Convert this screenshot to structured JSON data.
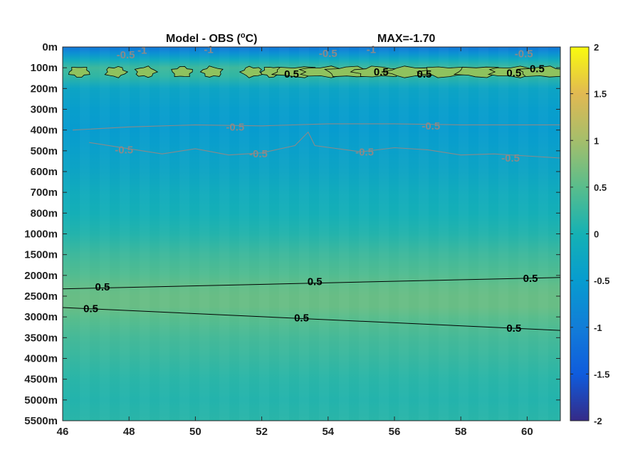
{
  "chart_data": {
    "type": "heatmap",
    "title": "Model - OBS (",
    "title_unit_sup": "o",
    "title_unit_rest": "C)",
    "max_label": "MAX=-1.70",
    "x_ticks": [
      "46",
      "48",
      "50",
      "52",
      "54",
      "56",
      "58",
      "60"
    ],
    "x_range": [
      46,
      61
    ],
    "y_ticks": [
      "0m",
      "100m",
      "200m",
      "300m",
      "400m",
      "500m",
      "600m",
      "700m",
      "800m",
      "1000m",
      "1500m",
      "2000m",
      "2500m",
      "3000m",
      "3500m",
      "4000m",
      "4500m",
      "5000m",
      "5500m"
    ],
    "colorbar": {
      "range": [
        -2,
        2
      ],
      "ticks": [
        "2",
        "1.5",
        "1",
        "0.5",
        "0",
        "-0.5",
        "-1",
        "-1.5",
        "-2"
      ],
      "colormap": "parula"
    },
    "depth_profile": [
      {
        "level": 0.0,
        "value": -1.1
      },
      {
        "level": 0.3,
        "value": -0.7
      },
      {
        "level": 0.6,
        "value": -0.2
      },
      {
        "level": 1.0,
        "value": 0.3
      },
      {
        "level": 1.4,
        "value": 0.2
      },
      {
        "level": 2.0,
        "value": -0.3
      },
      {
        "level": 3.0,
        "value": -0.45
      },
      {
        "level": 4.0,
        "value": -0.5
      },
      {
        "level": 5.0,
        "value": -0.4
      },
      {
        "level": 6.0,
        "value": -0.3
      },
      {
        "level": 7.0,
        "value": -0.15
      },
      {
        "level": 8.0,
        "value": -0.05
      },
      {
        "level": 9.0,
        "value": 0.1
      },
      {
        "level": 10.0,
        "value": 0.3
      },
      {
        "level": 11.0,
        "value": 0.45
      },
      {
        "level": 11.5,
        "value": 0.55
      },
      {
        "level": 12.0,
        "value": 0.6
      },
      {
        "level": 12.5,
        "value": 0.6
      },
      {
        "level": 13.0,
        "value": 0.5
      },
      {
        "level": 14.0,
        "value": 0.35
      },
      {
        "level": 15.0,
        "value": 0.25
      },
      {
        "level": 16.0,
        "value": 0.15
      },
      {
        "level": 17.0,
        "value": 0.1
      },
      {
        "level": 18.0,
        "value": 0.15
      }
    ],
    "contours": [
      {
        "level": 0.5,
        "color": "#000000",
        "points": [
          [
            46,
            11.65
          ],
          [
            61,
            11.1
          ]
        ]
      },
      {
        "level": 0.5,
        "color": "#000000",
        "points": [
          [
            46,
            12.55
          ],
          [
            61,
            13.65
          ]
        ]
      },
      {
        "level": -0.5,
        "color": "#8a8a8a",
        "points": [
          [
            46.3,
            4.0
          ],
          [
            48,
            3.85
          ],
          [
            50,
            3.75
          ],
          [
            52,
            3.8
          ],
          [
            54,
            3.7
          ],
          [
            56,
            3.7
          ],
          [
            58,
            3.75
          ],
          [
            61,
            3.75
          ]
        ]
      },
      {
        "level": -0.5,
        "color": "#8a8a8a",
        "points": [
          [
            46.8,
            4.6
          ],
          [
            48,
            4.9
          ],
          [
            49,
            5.15
          ],
          [
            50,
            4.9
          ],
          [
            51,
            5.2
          ],
          [
            52,
            5.1
          ],
          [
            53,
            4.75
          ],
          [
            53.4,
            4.1
          ],
          [
            53.6,
            4.75
          ],
          [
            55,
            5.05
          ],
          [
            56,
            4.85
          ],
          [
            57,
            4.95
          ],
          [
            58,
            5.2
          ],
          [
            59,
            5.15
          ],
          [
            61,
            5.35
          ]
        ]
      }
    ],
    "contour_labels": [
      {
        "text": "0.5",
        "x": 47.2,
        "y": 11.55,
        "color": "black"
      },
      {
        "text": "0.5",
        "x": 53.6,
        "y": 11.3,
        "color": "black"
      },
      {
        "text": "0.5",
        "x": 60.1,
        "y": 11.15,
        "color": "black"
      },
      {
        "text": "0.5",
        "x": 46.85,
        "y": 12.6,
        "color": "black"
      },
      {
        "text": "0.5",
        "x": 53.2,
        "y": 13.05,
        "color": "black"
      },
      {
        "text": "0.5",
        "x": 59.6,
        "y": 13.55,
        "color": "black"
      },
      {
        "text": "0.5",
        "x": 52.9,
        "y": 1.3,
        "color": "black"
      },
      {
        "text": "0.5",
        "x": 55.6,
        "y": 1.2,
        "color": "black"
      },
      {
        "text": "0.5",
        "x": 56.9,
        "y": 1.3,
        "color": "black"
      },
      {
        "text": "0.5",
        "x": 59.6,
        "y": 1.25,
        "color": "black"
      },
      {
        "text": "0.5",
        "x": 60.3,
        "y": 1.05,
        "color": "black"
      },
      {
        "text": "-0.5",
        "x": 51.2,
        "y": 3.85,
        "color": "gray"
      },
      {
        "text": "-0.5",
        "x": 57.1,
        "y": 3.8,
        "color": "gray"
      },
      {
        "text": "-0.5",
        "x": 47.85,
        "y": 4.95,
        "color": "gray"
      },
      {
        "text": "-0.5",
        "x": 51.9,
        "y": 5.15,
        "color": "gray"
      },
      {
        "text": "-0.5",
        "x": 55.1,
        "y": 5.05,
        "color": "gray"
      },
      {
        "text": "-0.5",
        "x": 59.5,
        "y": 5.35,
        "color": "gray"
      },
      {
        "text": "-0.5",
        "x": 47.9,
        "y": 0.38,
        "color": "gray"
      },
      {
        "text": "-0.5",
        "x": 54.0,
        "y": 0.3,
        "color": "gray"
      },
      {
        "text": "-0.5",
        "x": 59.9,
        "y": 0.32,
        "color": "gray"
      },
      {
        "text": "-1",
        "x": 48.4,
        "y": 0.15,
        "color": "gray"
      },
      {
        "text": "-1",
        "x": 50.4,
        "y": 0.12,
        "color": "gray"
      },
      {
        "text": "-1",
        "x": 55.3,
        "y": 0.12,
        "color": "gray"
      }
    ],
    "surface_blobs_x": [
      46.5,
      47.6,
      48.5,
      49.6,
      50.5,
      51.7,
      52.3,
      53.1,
      53.9,
      54.7,
      55.5,
      56.5,
      57.5,
      58.6,
      59.6,
      60.5
    ],
    "grid": false
  }
}
